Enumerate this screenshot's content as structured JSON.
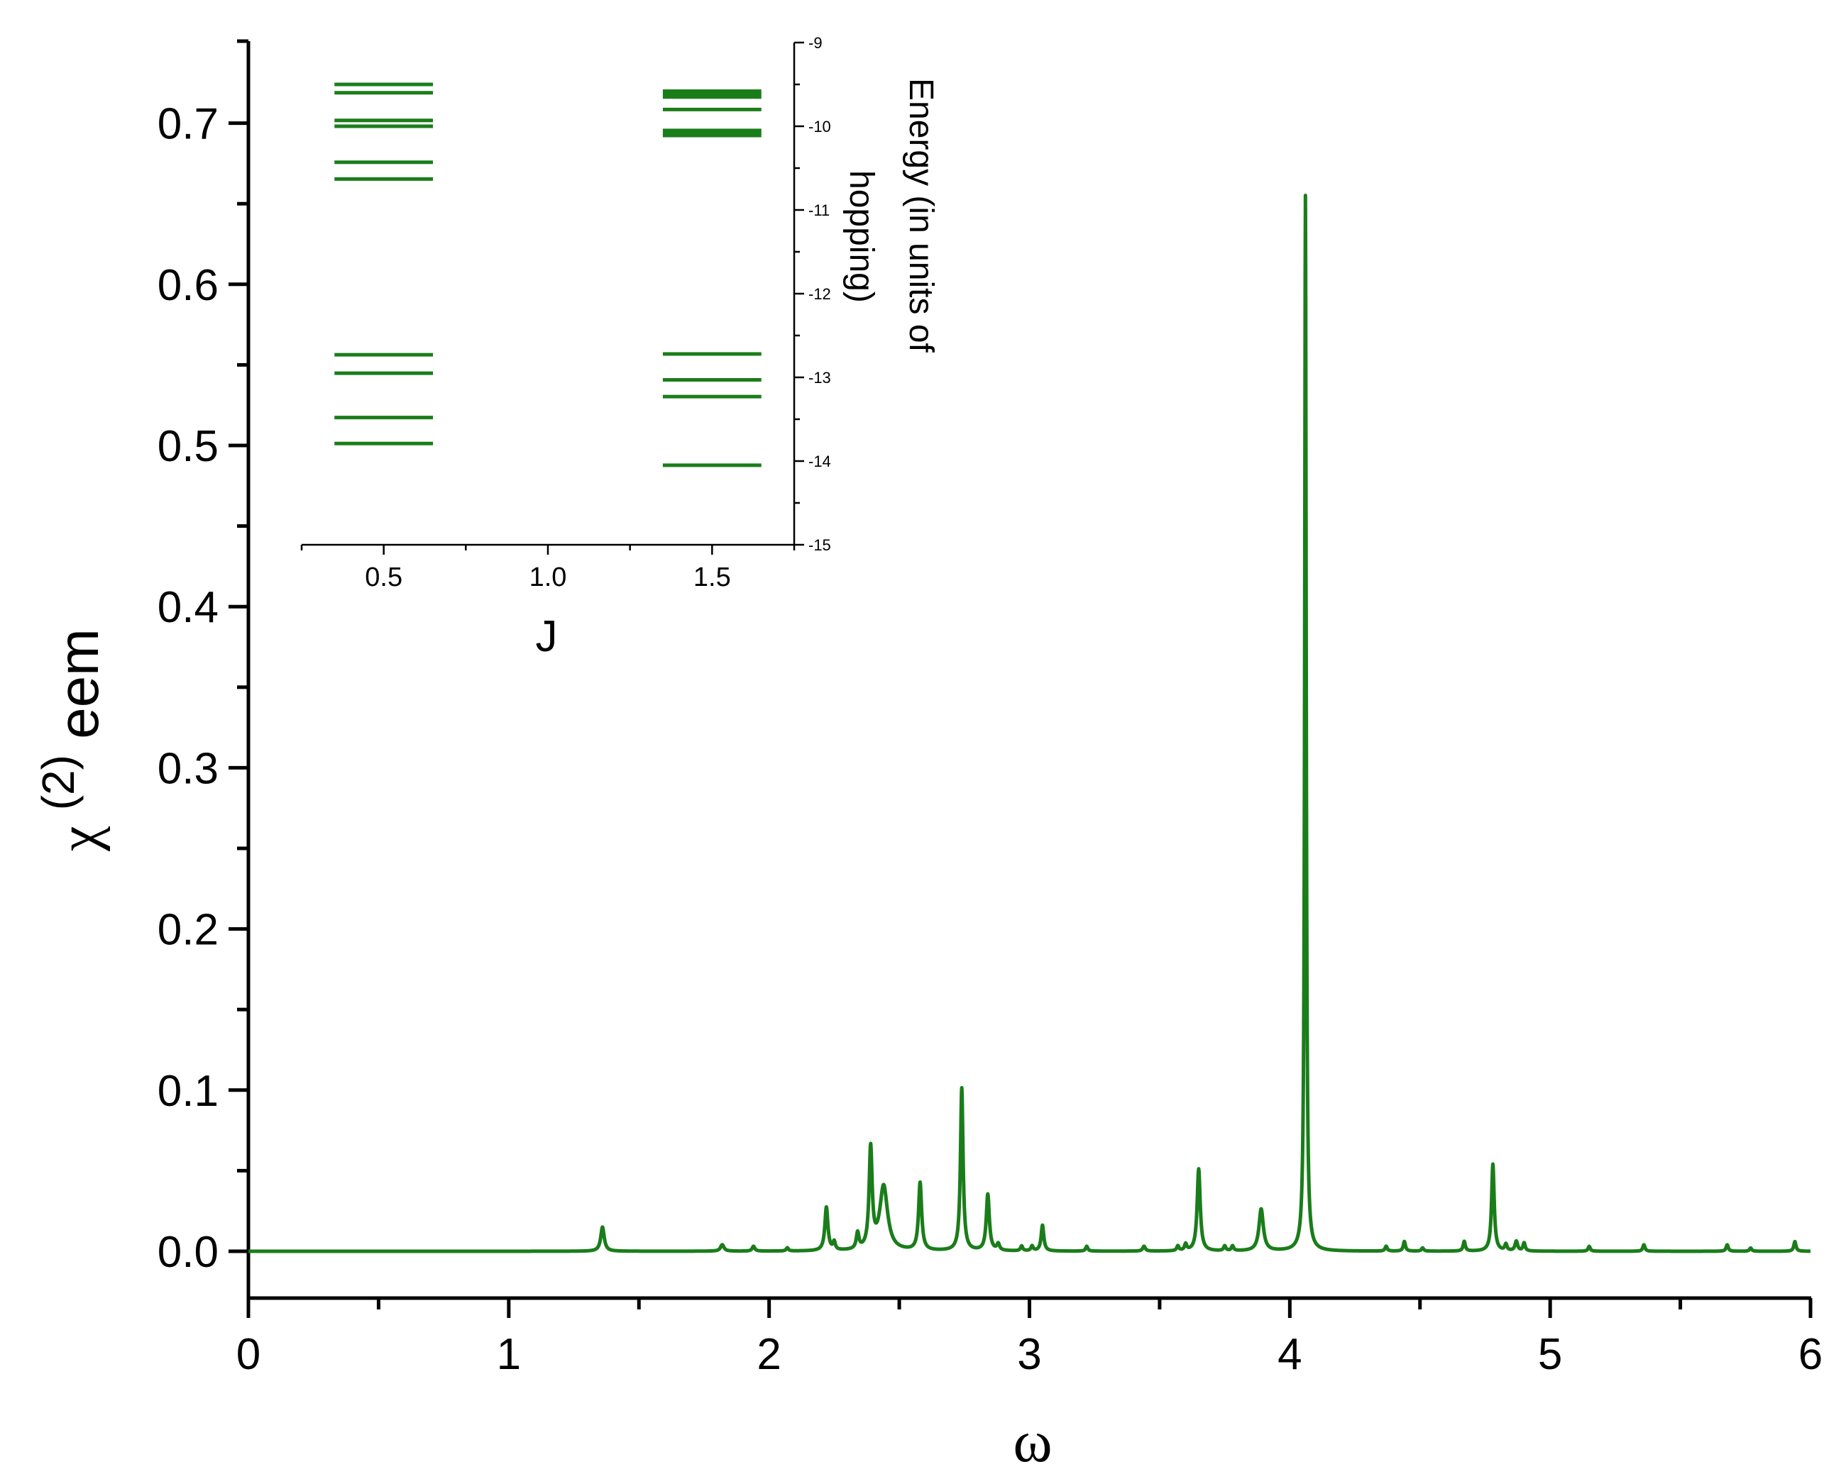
{
  "chart_data": [
    {
      "type": "line",
      "title": "",
      "xlabel": "ω",
      "ylabel_symbol": "χ",
      "ylabel_superscript": "(2)",
      "ylabel_subscript": "eem",
      "xlim": [
        0,
        6
      ],
      "ylim": [
        -0.03,
        0.75
      ],
      "xticks": [
        0,
        1,
        2,
        3,
        4,
        5,
        6
      ],
      "xtick_labels": [
        "0",
        "1",
        "2",
        "3",
        "4",
        "5",
        "6"
      ],
      "yticks": [
        0.0,
        0.1,
        0.2,
        0.3,
        0.4,
        0.5,
        0.6,
        0.7
      ],
      "ytick_labels": [
        "0.0",
        "0.1",
        "0.2",
        "0.3",
        "0.4",
        "0.5",
        "0.6",
        "0.7"
      ],
      "grid": false,
      "color": "#1a7d1a",
      "baseline": 0,
      "peaks": [
        {
          "x": 1.36,
          "y": 0.015,
          "w": 0.008
        },
        {
          "x": 1.82,
          "y": 0.004,
          "w": 0.008
        },
        {
          "x": 1.94,
          "y": 0.003,
          "w": 0.006
        },
        {
          "x": 2.07,
          "y": 0.002,
          "w": 0.005
        },
        {
          "x": 2.22,
          "y": 0.027,
          "w": 0.007
        },
        {
          "x": 2.25,
          "y": 0.005,
          "w": 0.005
        },
        {
          "x": 2.34,
          "y": 0.01,
          "w": 0.006
        },
        {
          "x": 2.39,
          "y": 0.062,
          "w": 0.007
        },
        {
          "x": 2.44,
          "y": 0.04,
          "w": 0.018
        },
        {
          "x": 2.58,
          "y": 0.042,
          "w": 0.007
        },
        {
          "x": 2.74,
          "y": 0.101,
          "w": 0.006
        },
        {
          "x": 2.84,
          "y": 0.035,
          "w": 0.007
        },
        {
          "x": 2.88,
          "y": 0.004,
          "w": 0.006
        },
        {
          "x": 2.97,
          "y": 0.003,
          "w": 0.005
        },
        {
          "x": 3.01,
          "y": 0.003,
          "w": 0.005
        },
        {
          "x": 3.05,
          "y": 0.016,
          "w": 0.006
        },
        {
          "x": 3.22,
          "y": 0.003,
          "w": 0.005
        },
        {
          "x": 3.44,
          "y": 0.003,
          "w": 0.006
        },
        {
          "x": 3.57,
          "y": 0.003,
          "w": 0.005
        },
        {
          "x": 3.6,
          "y": 0.004,
          "w": 0.005
        },
        {
          "x": 3.65,
          "y": 0.051,
          "w": 0.007
        },
        {
          "x": 3.75,
          "y": 0.003,
          "w": 0.005
        },
        {
          "x": 3.78,
          "y": 0.003,
          "w": 0.005
        },
        {
          "x": 3.89,
          "y": 0.026,
          "w": 0.01
        },
        {
          "x": 4.06,
          "y": 0.655,
          "w": 0.0035
        },
        {
          "x": 4.37,
          "y": 0.003,
          "w": 0.005
        },
        {
          "x": 4.44,
          "y": 0.006,
          "w": 0.005
        },
        {
          "x": 4.51,
          "y": 0.002,
          "w": 0.005
        },
        {
          "x": 4.67,
          "y": 0.006,
          "w": 0.005
        },
        {
          "x": 4.78,
          "y": 0.054,
          "w": 0.006
        },
        {
          "x": 4.83,
          "y": 0.004,
          "w": 0.005
        },
        {
          "x": 4.87,
          "y": 0.006,
          "w": 0.006
        },
        {
          "x": 4.9,
          "y": 0.005,
          "w": 0.005
        },
        {
          "x": 5.15,
          "y": 0.003,
          "w": 0.005
        },
        {
          "x": 5.36,
          "y": 0.004,
          "w": 0.005
        },
        {
          "x": 5.68,
          "y": 0.004,
          "w": 0.005
        },
        {
          "x": 5.77,
          "y": 0.002,
          "w": 0.005
        },
        {
          "x": 5.94,
          "y": 0.006,
          "w": 0.005
        }
      ]
    },
    {
      "type": "scatter",
      "subtype": "energy-level-lines",
      "title": "",
      "xlabel": "J",
      "ylabel": "Energy (in units of hopping)",
      "xlim": [
        0.25,
        1.75
      ],
      "ylim": [
        -15,
        -9
      ],
      "xticks": [
        0.5,
        1.0,
        1.5
      ],
      "xtick_labels": [
        "0.5",
        "1.0",
        "1.5"
      ],
      "yticks": [
        -9,
        -10,
        -11,
        -12,
        -13,
        -14,
        -15
      ],
      "ytick_labels": [
        "-9",
        "-10",
        "-11",
        "-12",
        "-13",
        "-14",
        "-15"
      ],
      "y_axis_side": "right",
      "grid": false,
      "color": "#1a7d1a",
      "level_halfwidth": 0.15,
      "series": [
        {
          "J": 0.5,
          "energies": [
            -9.5,
            -9.6,
            -9.93,
            -10.0,
            -10.43,
            -10.63,
            -12.73,
            -12.95,
            -13.48,
            -13.79
          ]
        },
        {
          "J": 1.5,
          "energies": [
            -9.58,
            -9.62,
            -9.65,
            -9.8,
            -10.05,
            -10.08,
            -10.11,
            -12.72,
            -13.03,
            -13.23,
            -14.05
          ]
        }
      ]
    }
  ]
}
